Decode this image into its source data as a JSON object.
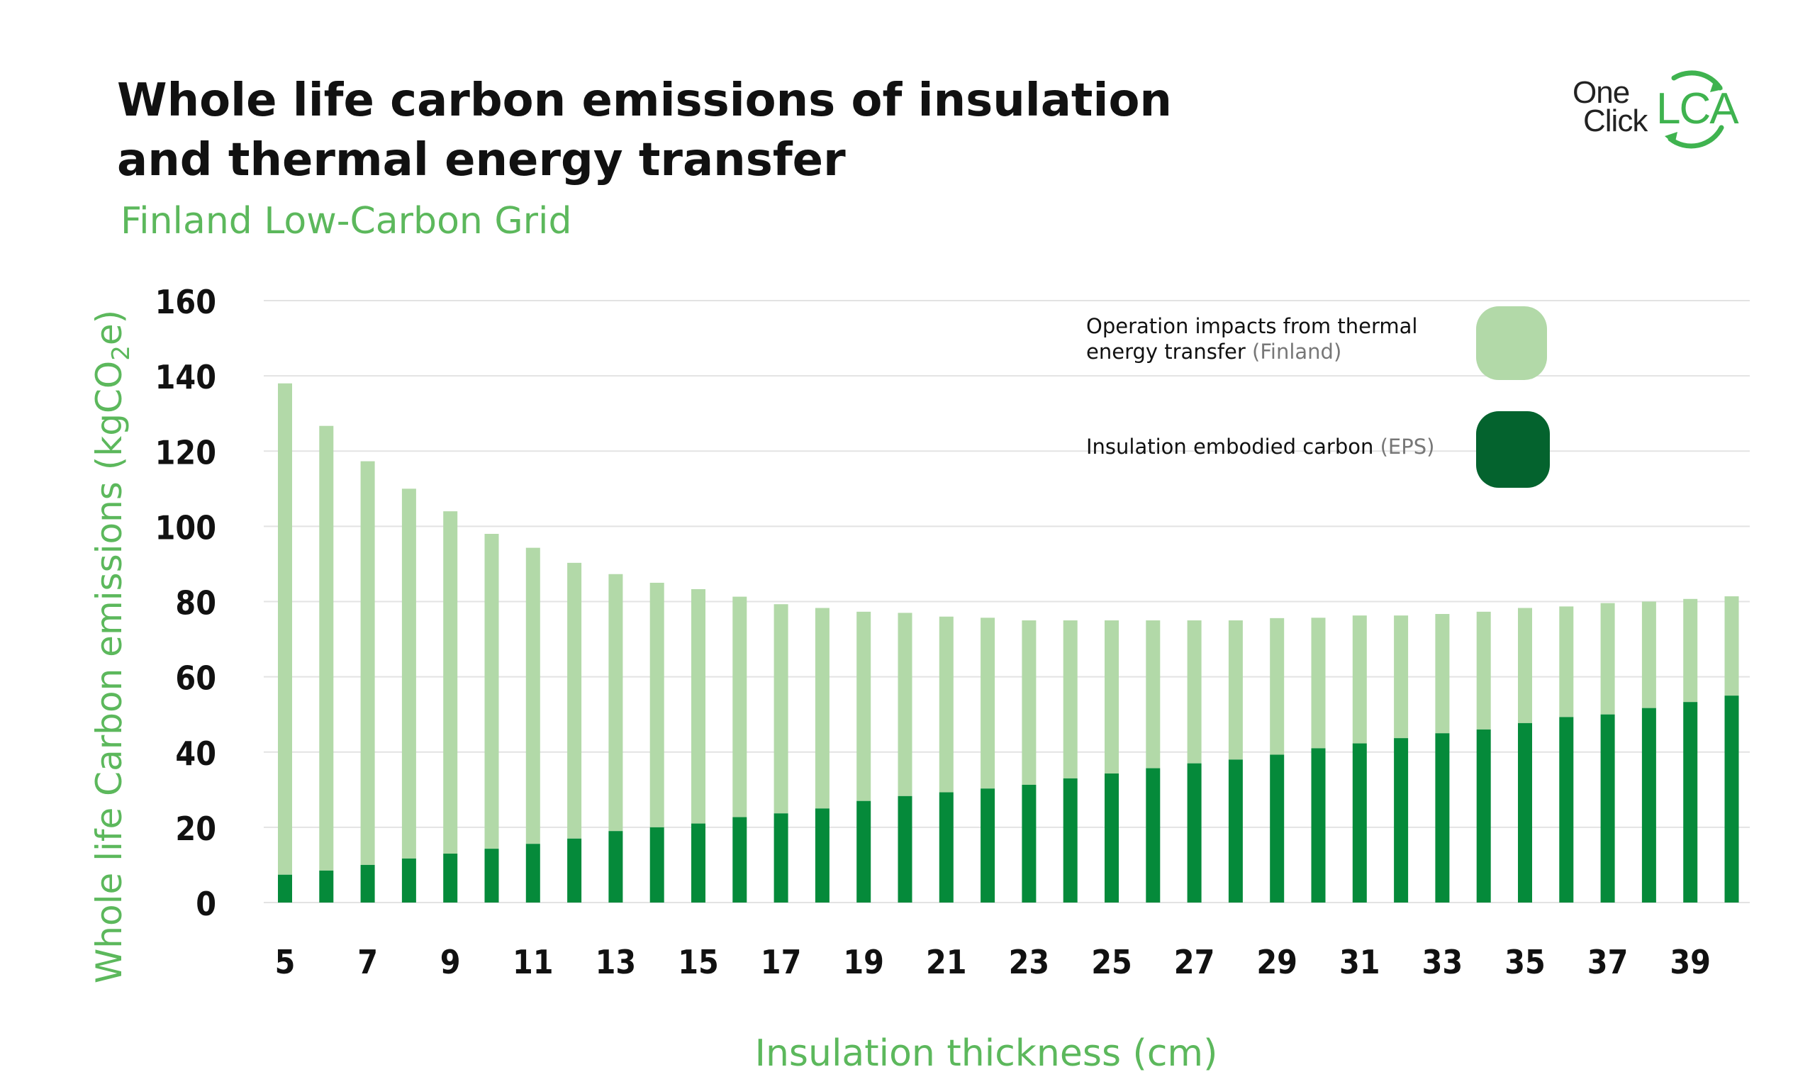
{
  "header": {
    "title_line1": "Whole life carbon emissions of insulation",
    "title_line2": "and thermal energy transfer",
    "subtitle": "Finland Low-Carbon Grid"
  },
  "logo": {
    "word1": "One",
    "word2": "Click",
    "word3": "LCA",
    "icon": "recycle-arrows-icon"
  },
  "colors": {
    "operation": "#b2d9a8",
    "embodied": "#058a3a",
    "embodied_legend": "#04632e",
    "accent_text": "#5cb85c",
    "grid": "#e3e3e3"
  },
  "legend": {
    "operation_line1": "Operation impacts from thermal",
    "operation_line2": "energy transfer",
    "operation_note": "(Finland)",
    "embodied_label": "Insulation embodied carbon",
    "embodied_note": "(EPS)"
  },
  "chart_data": {
    "type": "bar",
    "stacked": true,
    "title": "Whole life carbon emissions of insulation and thermal energy transfer",
    "subtitle": "Finland Low-Carbon Grid",
    "xlabel": "Insulation thickness (cm)",
    "ylabel": "Whole life Carbon emissions (kgCO2e)",
    "ylabel_parts": {
      "before": "Whole life Carbon emissions (kgCO",
      "sub": "2",
      "after": "e)"
    },
    "ylim": [
      0,
      160
    ],
    "yticks": [
      0,
      20,
      40,
      60,
      80,
      100,
      120,
      140,
      160
    ],
    "xtick_labels": [
      "5",
      "7",
      "9",
      "11",
      "13",
      "15",
      "17",
      "19",
      "21",
      "23",
      "25",
      "27",
      "29",
      "31",
      "33",
      "35",
      "37",
      "39"
    ],
    "grid": true,
    "legend_position": "top-right",
    "categories": [
      5,
      6,
      7,
      8,
      9,
      10,
      11,
      12,
      13,
      14,
      15,
      16,
      17,
      18,
      19,
      20,
      21,
      22,
      23,
      24,
      25,
      26,
      27,
      28,
      29,
      30,
      31,
      32,
      33,
      34,
      35,
      36,
      37,
      38,
      39,
      40
    ],
    "series": [
      {
        "name": "Insulation embodied carbon (EPS)",
        "values": [
          7.4,
          8.5,
          10,
          11.7,
          13,
          14.3,
          15.6,
          17,
          19,
          20,
          21,
          22.7,
          23.7,
          25,
          27,
          28.3,
          29.3,
          30.3,
          31.3,
          33,
          34.3,
          35.7,
          37,
          38,
          39.3,
          41,
          42.3,
          43.7,
          45,
          46,
          47.7,
          49.3,
          50,
          51.7,
          53.3,
          55
        ]
      },
      {
        "name": "Operation impacts from thermal energy transfer (Finland)",
        "values": [
          130.6,
          118.2,
          107.3,
          98.3,
          91,
          83.7,
          78.7,
          73.3,
          68.3,
          65,
          62.3,
          58.6,
          55.6,
          53.3,
          50.3,
          48.7,
          46.7,
          45.4,
          43.7,
          42,
          40.7,
          39.3,
          38,
          37,
          36.3,
          34.7,
          34,
          32.6,
          31.7,
          31.3,
          30.6,
          29.4,
          29.6,
          28.3,
          27.4,
          26.4
        ]
      }
    ]
  }
}
